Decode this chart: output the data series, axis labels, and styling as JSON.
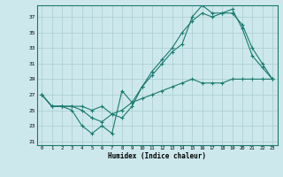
{
  "xlabel": "Humidex (Indice chaleur)",
  "bg_color": "#cde8ec",
  "line_color": "#1a7a6e",
  "grid_color": "#a8ccd0",
  "x_ticks": [
    0,
    1,
    2,
    3,
    4,
    5,
    6,
    7,
    8,
    9,
    10,
    11,
    12,
    13,
    14,
    15,
    16,
    17,
    18,
    19,
    20,
    21,
    22,
    23
  ],
  "y_ticks": [
    21,
    23,
    25,
    27,
    29,
    31,
    33,
    35,
    37
  ],
  "xlim": [
    -0.5,
    23.5
  ],
  "ylim": [
    20.5,
    38.5
  ],
  "line1_x": [
    0,
    1,
    2,
    3,
    4,
    5,
    6,
    7,
    8,
    9,
    10,
    11,
    12,
    13,
    14,
    15,
    16,
    17,
    18,
    19,
    20,
    21,
    22,
    23
  ],
  "line1_y": [
    27,
    25.5,
    25.5,
    25,
    23,
    22,
    23,
    22,
    27.5,
    26,
    26.5,
    27,
    27.5,
    28,
    28.5,
    29,
    28.5,
    28.5,
    28.5,
    29,
    29,
    29,
    29,
    29
  ],
  "line2_x": [
    0,
    1,
    2,
    3,
    4,
    5,
    6,
    7,
    8,
    9,
    10,
    11,
    12,
    13,
    14,
    15,
    16,
    17,
    18,
    19,
    20,
    21,
    22,
    23
  ],
  "line2_y": [
    27,
    25.5,
    25.5,
    25.5,
    25.5,
    25,
    25.5,
    24.5,
    25,
    26,
    28,
    29.5,
    31,
    32.5,
    33.5,
    37,
    38.5,
    37.5,
    37.5,
    37.5,
    36,
    33,
    31,
    29
  ],
  "line3_x": [
    0,
    1,
    2,
    3,
    4,
    5,
    6,
    7,
    8,
    9,
    10,
    11,
    12,
    13,
    14,
    15,
    16,
    17,
    18,
    19,
    20,
    21,
    22,
    23
  ],
  "line3_y": [
    27,
    25.5,
    25.5,
    25.5,
    25,
    24,
    23.5,
    24.5,
    24,
    25.5,
    28,
    30,
    31.5,
    33,
    35,
    36.5,
    37.5,
    37,
    37.5,
    38,
    35.5,
    32,
    30.5,
    29
  ]
}
